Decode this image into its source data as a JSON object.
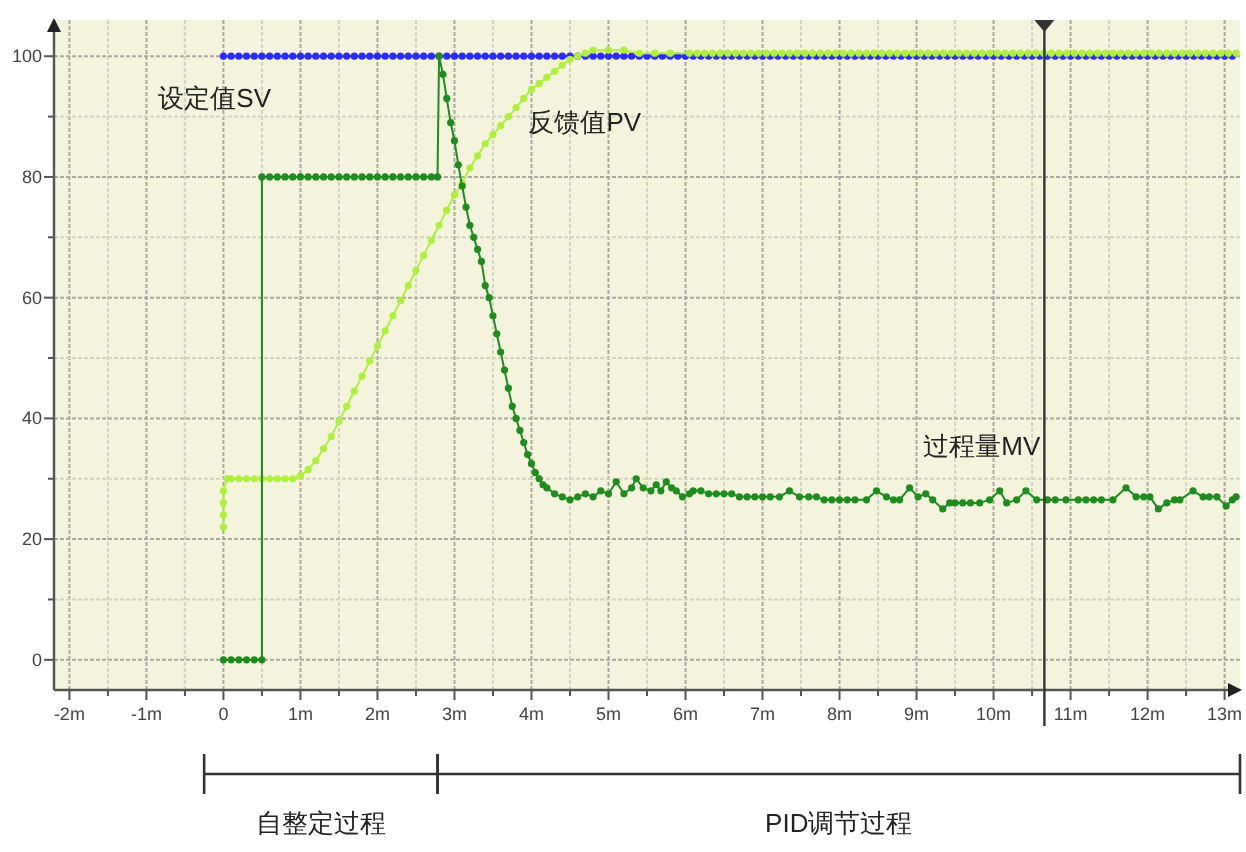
{
  "chart_data": {
    "type": "line",
    "xlim": [
      -2.2,
      13.2
    ],
    "ylim": [
      -5,
      106
    ],
    "xticks": [
      {
        "value": -2,
        "label": "-2m"
      },
      {
        "value": -1.5,
        "label": null
      },
      {
        "value": -1,
        "label": "-1m"
      },
      {
        "value": -0.5,
        "label": null
      },
      0,
      {
        "value": 0.5,
        "label": null
      },
      {
        "value": 1,
        "label": "1m"
      },
      {
        "value": 1.5,
        "label": null
      },
      {
        "value": 2,
        "label": "2m"
      },
      {
        "value": 2.5,
        "label": null
      },
      {
        "value": 3,
        "label": "3m"
      },
      {
        "value": 3.5,
        "label": null
      },
      {
        "value": 4,
        "label": "4m"
      },
      {
        "value": 4.5,
        "label": null
      },
      {
        "value": 5,
        "label": "5m"
      },
      {
        "value": 5.5,
        "label": null
      },
      {
        "value": 6,
        "label": "6m"
      },
      {
        "value": 6.5,
        "label": null
      },
      {
        "value": 7,
        "label": "7m"
      },
      {
        "value": 7.5,
        "label": null
      },
      {
        "value": 8,
        "label": "8m"
      },
      {
        "value": 8.5,
        "label": null
      },
      {
        "value": 9,
        "label": "9m"
      },
      {
        "value": 9.5,
        "label": null
      },
      {
        "value": 10,
        "label": "10m"
      },
      {
        "value": 10.5,
        "label": null
      },
      {
        "value": 11,
        "label": "11m"
      },
      {
        "value": 11.5,
        "label": null
      },
      {
        "value": 12,
        "label": "12m"
      },
      {
        "value": 12.5,
        "label": null
      },
      {
        "value": 13,
        "label": "13m"
      }
    ],
    "yticks": [
      0,
      {
        "value": 10,
        "label": null
      },
      20,
      {
        "value": 30,
        "label": null
      },
      40,
      {
        "value": 50,
        "label": null
      },
      60,
      {
        "value": 70,
        "label": null
      },
      80,
      {
        "value": 90,
        "label": null
      },
      100
    ],
    "grid": true,
    "marker": "circle",
    "ref_lines": [
      {
        "axis": "x",
        "value": 10.66,
        "color": "#333333"
      }
    ],
    "annotations": [
      "自整定过程",
      "PID调节过程"
    ],
    "series": [
      {
        "name": "设定值SV",
        "color": "#2b2bff",
        "x": [
          0,
          0.1,
          0.2,
          0.3,
          0.4,
          0.5,
          0.6,
          0.7,
          0.8,
          0.9,
          1,
          1.1,
          1.2,
          1.3,
          1.4,
          1.5,
          1.6,
          1.7,
          1.8,
          1.9,
          2,
          2.1,
          2.2,
          2.3,
          2.4,
          2.5,
          2.6,
          2.7,
          2.8,
          2.9,
          3,
          3.1,
          3.2,
          3.3,
          3.4,
          3.5,
          3.6,
          3.7,
          3.8,
          3.9,
          4,
          4.1,
          4.2,
          4.3,
          4.4,
          4.5,
          4.6,
          4.7,
          4.8,
          4.9,
          5,
          5.1,
          5.2,
          5.3,
          5.4,
          5.5,
          5.6,
          5.7,
          5.8,
          5.9,
          6,
          6.1,
          6.2,
          6.3,
          6.4,
          6.5,
          6.6,
          6.7,
          6.8,
          6.9,
          7,
          7.1,
          7.2,
          7.3,
          7.4,
          7.5,
          7.6,
          7.7,
          7.8,
          7.9,
          8,
          8.1,
          8.2,
          8.3,
          8.4,
          8.5,
          8.6,
          8.7,
          8.8,
          8.9,
          9,
          9.1,
          9.2,
          9.3,
          9.4,
          9.5,
          9.6,
          9.7,
          9.8,
          9.9,
          10,
          10.1,
          10.2,
          10.3,
          10.4,
          10.5,
          10.6,
          10.7,
          10.8,
          10.9,
          11,
          11.1,
          11.2,
          11.3,
          11.4,
          11.5,
          11.6,
          11.7,
          11.8,
          11.9,
          12,
          12.1,
          12.2,
          12.3,
          12.4,
          12.5,
          12.6,
          12.7,
          12.8,
          12.9,
          13,
          13.1
        ],
        "values": [
          100,
          100,
          100,
          100,
          100,
          100,
          100,
          100,
          100,
          100,
          100,
          100,
          100,
          100,
          100,
          100,
          100,
          100,
          100,
          100,
          100,
          100,
          100,
          100,
          100,
          100,
          100,
          100,
          100,
          100,
          100,
          100,
          100,
          100,
          100,
          100,
          100,
          100,
          100,
          100,
          100,
          100,
          100,
          100,
          100,
          100,
          100,
          100,
          100,
          100,
          100,
          100,
          100,
          100,
          100,
          100,
          100,
          100,
          100,
          100,
          100,
          100,
          100,
          100,
          100,
          100,
          100,
          100,
          100,
          100,
          100,
          100,
          100,
          100,
          100,
          100,
          100,
          100,
          100,
          100,
          100,
          100,
          100,
          100,
          100,
          100,
          100,
          100,
          100,
          100,
          100,
          100,
          100,
          100,
          100,
          100,
          100,
          100,
          100,
          100,
          100,
          100,
          100,
          100,
          100,
          100,
          100,
          100,
          100,
          100,
          100,
          100,
          100,
          100,
          100,
          100,
          100,
          100,
          100,
          100,
          100,
          100,
          100,
          100,
          100,
          100,
          100,
          100,
          100,
          100,
          100,
          100
        ]
      },
      {
        "name": "反馈值PV",
        "color": "#aef03c",
        "x": [
          0,
          0,
          0,
          0,
          0.05,
          0.1,
          0.2,
          0.3,
          0.4,
          0.5,
          0.6,
          0.7,
          0.8,
          0.9,
          1,
          1.1,
          1.2,
          1.3,
          1.4,
          1.5,
          1.6,
          1.7,
          1.8,
          1.9,
          2,
          2.1,
          2.2,
          2.3,
          2.4,
          2.5,
          2.6,
          2.7,
          2.8,
          2.9,
          3,
          3.1,
          3.2,
          3.3,
          3.4,
          3.5,
          3.6,
          3.7,
          3.8,
          3.9,
          4,
          4.1,
          4.2,
          4.3,
          4.4,
          4.5,
          4.6,
          4.7,
          4.8,
          5,
          5.2,
          5.4,
          5.6,
          5.8,
          6.05,
          6.15,
          6.25,
          6.35,
          6.45,
          6.55,
          6.65,
          6.75,
          6.85,
          6.95,
          7.05,
          7.15,
          7.25,
          7.35,
          7.45,
          7.55,
          7.65,
          7.75,
          7.85,
          7.95,
          8.05,
          8.15,
          8.25,
          8.35,
          8.45,
          8.55,
          8.65,
          8.75,
          8.85,
          8.95,
          9.05,
          9.15,
          9.25,
          9.35,
          9.45,
          9.55,
          9.65,
          9.75,
          9.85,
          9.95,
          10.05,
          10.15,
          10.25,
          10.35,
          10.45,
          10.55,
          10.65,
          10.75,
          10.85,
          10.95,
          11.05,
          11.15,
          11.25,
          11.35,
          11.45,
          11.55,
          11.65,
          11.75,
          11.85,
          11.95,
          12.05,
          12.15,
          12.25,
          12.35,
          12.45,
          12.55,
          12.65,
          12.75,
          12.85,
          12.95,
          13.05,
          13.15
        ],
        "values": [
          22,
          24,
          26,
          28,
          30,
          30,
          30,
          30,
          30,
          30,
          30,
          30,
          30,
          30,
          30.5,
          31.5,
          33,
          35,
          37,
          39.5,
          42,
          44.5,
          47,
          49.5,
          52,
          54.5,
          57,
          59.5,
          62,
          64.5,
          67,
          69.5,
          72,
          74.5,
          77,
          79,
          81.5,
          83.5,
          85.5,
          87,
          88.5,
          90,
          91.5,
          93,
          94.5,
          95.5,
          96.5,
          97.5,
          98.5,
          99.5,
          100,
          100.5,
          101,
          101,
          101,
          100.5,
          100.5,
          100.5,
          100.5,
          100.5,
          100.5,
          100.5,
          100.5,
          100.5,
          100.5,
          100.5,
          100.5,
          100.5,
          100.5,
          100.5,
          100.5,
          100.5,
          100.5,
          100.5,
          100.5,
          100.5,
          100.5,
          100.5,
          100.5,
          100.5,
          100.5,
          100.5,
          100.5,
          100.5,
          100.5,
          100.5,
          100.5,
          100.5,
          100.5,
          100.5,
          100.5,
          100.5,
          100.5,
          100.5,
          100.5,
          100.5,
          100.5,
          100.5,
          100.5,
          100.5,
          100.5,
          100.5,
          100.5,
          100.5,
          100.5,
          100.5,
          100.5,
          100.5,
          100.5,
          100.5,
          100.5,
          100.5,
          100.5,
          100.5,
          100.5,
          100.5,
          100.5,
          100.5,
          100.5,
          100.5,
          100.5,
          100.5,
          100.5,
          100.5,
          100.5,
          100.5,
          100.5,
          100.5,
          100.5,
          100.5
        ]
      },
      {
        "name": "过程量MV",
        "color": "#1e8c1e",
        "x": [
          0,
          0.1,
          0.2,
          0.3,
          0.4,
          0.5,
          0.5,
          0.6,
          0.7,
          0.8,
          0.9,
          1,
          1.1,
          1.2,
          1.3,
          1.4,
          1.5,
          1.6,
          1.7,
          1.8,
          1.9,
          2,
          2.1,
          2.2,
          2.3,
          2.4,
          2.5,
          2.6,
          2.7,
          2.78,
          2.8,
          2.85,
          2.9,
          2.95,
          3,
          3.05,
          3.1,
          3.15,
          3.2,
          3.25,
          3.3,
          3.35,
          3.4,
          3.45,
          3.5,
          3.55,
          3.6,
          3.65,
          3.7,
          3.75,
          3.8,
          3.85,
          3.9,
          3.95,
          4,
          4.05,
          4.1,
          4.15,
          4.2,
          4.3,
          4.4,
          4.5,
          4.6,
          4.7,
          4.8,
          4.9,
          5,
          5.1,
          5.2,
          5.3,
          5.36,
          5.45,
          5.55,
          5.62,
          5.68,
          5.75,
          5.82,
          5.88,
          5.96,
          6.05,
          6.1,
          6.2,
          6.3,
          6.4,
          6.5,
          6.6,
          6.7,
          6.8,
          6.9,
          7,
          7.1,
          7.22,
          7.35,
          7.48,
          7.6,
          7.7,
          7.8,
          7.9,
          8,
          8.1,
          8.2,
          8.35,
          8.48,
          8.61,
          8.7,
          8.78,
          8.91,
          9.02,
          9.12,
          9.21,
          9.34,
          9.43,
          9.5,
          9.6,
          9.7,
          9.82,
          9.95,
          10.08,
          10.17,
          10.3,
          10.42,
          10.56,
          10.7,
          10.8,
          10.94,
          11.1,
          11.2,
          11.3,
          11.4,
          11.55,
          11.72,
          11.85,
          11.95,
          12.03,
          12.14,
          12.25,
          12.35,
          12.42,
          12.59,
          12.72,
          12.8,
          12.9,
          13.02,
          13.1,
          13.15
        ],
        "values": [
          0,
          0,
          0,
          0,
          0,
          0,
          80,
          80,
          80,
          80,
          80,
          80,
          80,
          80,
          80,
          80,
          80,
          80,
          80,
          80,
          80,
          80,
          80,
          80,
          80,
          80,
          80,
          80,
          80,
          80,
          100,
          97,
          93,
          89,
          86,
          82,
          78.5,
          75,
          72,
          70,
          68,
          66,
          62,
          60,
          57,
          54,
          51,
          48,
          45,
          42,
          40,
          38,
          36,
          34,
          32.5,
          31,
          30,
          29,
          28.5,
          27.5,
          27,
          26.5,
          27,
          27.5,
          27,
          28,
          27.5,
          29.5,
          27.5,
          28.5,
          30,
          28.5,
          28,
          29,
          28,
          29.5,
          28.5,
          28,
          27,
          27.5,
          28,
          28,
          27.5,
          27.5,
          27.5,
          27.5,
          27,
          27,
          27,
          27,
          27,
          27,
          28,
          27,
          27,
          27,
          26.5,
          26.5,
          26.5,
          26.5,
          26.5,
          26.5,
          28,
          27,
          26.5,
          26.5,
          28.5,
          27,
          27.5,
          26.5,
          25,
          26,
          26,
          26,
          26,
          26,
          26.5,
          28,
          26,
          26.5,
          28,
          26.5,
          26.5,
          26.5,
          26.5,
          26.5,
          26.5,
          26.5,
          26.5,
          26.5,
          28.5,
          27,
          27,
          27,
          25,
          26,
          26.5,
          26.5,
          28,
          27,
          27,
          27,
          25.5,
          26.5,
          27
        ]
      }
    ]
  }
}
